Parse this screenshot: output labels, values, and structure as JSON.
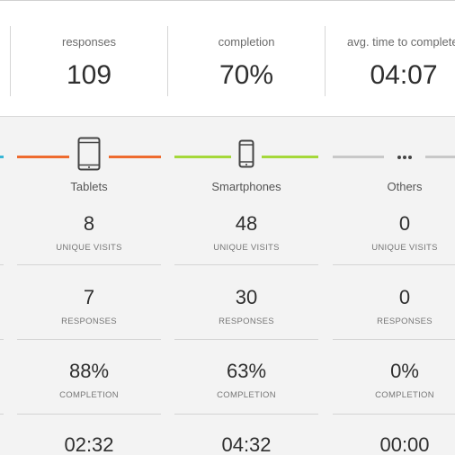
{
  "summary": [
    {
      "label": "responses",
      "value": "109"
    },
    {
      "label": "completion",
      "value": "70%"
    },
    {
      "label": "avg. time to complete",
      "value": "04:07"
    }
  ],
  "devices": [
    {
      "name": "Tablets",
      "icon": "tablet-icon",
      "color": "#ee6b2f",
      "unique_visits": "8",
      "unique_visits_label": "UNIQUE VISITS",
      "responses": "7",
      "responses_label": "RESPONSES",
      "completion": "88%",
      "completion_label": "COMPLETION",
      "avg_time": "02:32"
    },
    {
      "name": "Smartphones",
      "icon": "smartphone-icon",
      "color": "#a5d83a",
      "unique_visits": "48",
      "unique_visits_label": "UNIQUE VISITS",
      "responses": "30",
      "responses_label": "RESPONSES",
      "completion": "63%",
      "completion_label": "COMPLETION",
      "avg_time": "04:32"
    },
    {
      "name": "Others",
      "icon": "more-dots-icon",
      "color": "#c8c8c8",
      "unique_visits": "0",
      "unique_visits_label": "UNIQUE VISITS",
      "responses": "0",
      "responses_label": "RESPONSES",
      "completion": "0%",
      "completion_label": "COMPLETION",
      "avg_time": "00:00"
    }
  ],
  "desktop_accent_color": "#38b6d6"
}
